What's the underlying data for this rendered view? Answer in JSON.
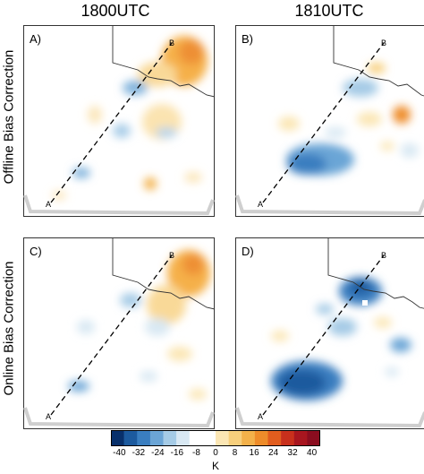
{
  "columns": [
    "1800UTC",
    "1810UTC"
  ],
  "rows": [
    "Offline Bias Correction",
    "Online Bias Correction"
  ],
  "panels": [
    {
      "label": "A)",
      "start_marker": "A",
      "end_marker": "B"
    },
    {
      "label": "B)",
      "start_marker": "A",
      "end_marker": "B"
    },
    {
      "label": "C)",
      "start_marker": "A",
      "end_marker": "B"
    },
    {
      "label": "D)",
      "start_marker": "A",
      "end_marker": "B"
    }
  ],
  "chart_data": {
    "type": "heatmap",
    "colorbar": {
      "ticks": [
        "-40",
        "-32",
        "-24",
        "-16",
        "-8",
        "0",
        "8",
        "16",
        "24",
        "32",
        "40"
      ],
      "range": [
        -40,
        40
      ],
      "units": "K",
      "colors": [
        "#08306b",
        "#1c5a9e",
        "#3a7ec0",
        "#6ba5d6",
        "#a5cbe6",
        "#d8e8f3",
        "#ffffff",
        "#ffffff",
        "#fbe6b4",
        "#f7cf7c",
        "#f3b14a",
        "#ee8c2a",
        "#e15d1e",
        "#c8301c",
        "#a8161f",
        "#8b0d1f"
      ]
    },
    "features": [
      "cross-section line A to B",
      "state boundary outline"
    ]
  }
}
